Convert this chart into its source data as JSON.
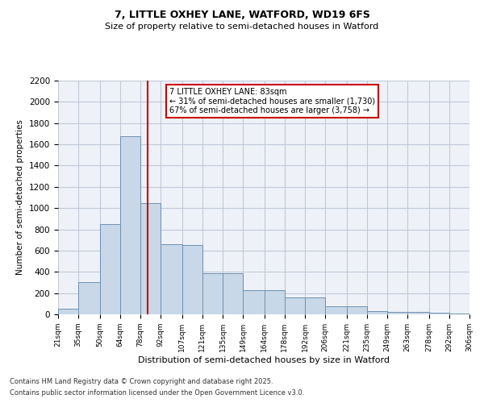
{
  "title1": "7, LITTLE OXHEY LANE, WATFORD, WD19 6FS",
  "title2": "Size of property relative to semi-detached houses in Watford",
  "xlabel": "Distribution of semi-detached houses by size in Watford",
  "ylabel": "Number of semi-detached properties",
  "annotation_title": "7 LITTLE OXHEY LANE: 83sqm",
  "annotation_line1": "← 31% of semi-detached houses are smaller (1,730)",
  "annotation_line2": "67% of semi-detached houses are larger (3,758) →",
  "footnote1": "Contains HM Land Registry data © Crown copyright and database right 2025.",
  "footnote2": "Contains public sector information licensed under the Open Government Licence v3.0.",
  "property_size": 83,
  "bin_edges": [
    21,
    35,
    50,
    64,
    78,
    92,
    107,
    121,
    135,
    149,
    164,
    178,
    192,
    206,
    221,
    235,
    249,
    263,
    278,
    292,
    306
  ],
  "bar_heights": [
    50,
    300,
    850,
    1680,
    1050,
    660,
    650,
    390,
    390,
    230,
    230,
    160,
    160,
    75,
    75,
    30,
    25,
    20,
    15,
    8,
    5
  ],
  "bar_color": "#c8d8e8",
  "bar_edge_color": "#7090b0",
  "red_line_color": "#cc0000",
  "grid_color": "#c0c8d8",
  "bg_color": "#eef2f8",
  "ylim": [
    0,
    2200
  ],
  "yticks": [
    0,
    200,
    400,
    600,
    800,
    1000,
    1200,
    1400,
    1600,
    1800,
    2000,
    2200
  ]
}
